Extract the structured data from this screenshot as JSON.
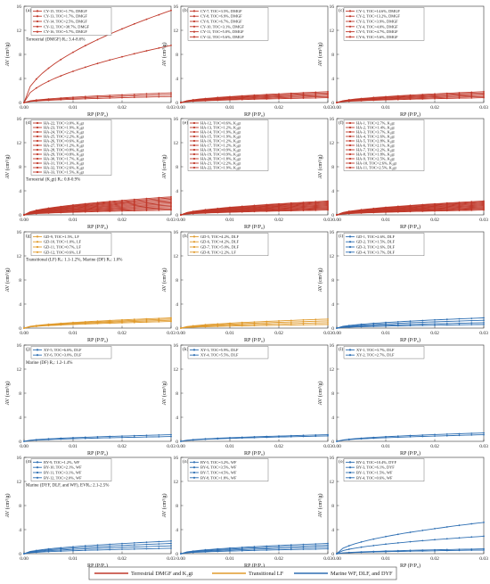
{
  "figure": {
    "bottom_legend": [
      {
        "label": "Terrestrial DMGF and K₂gt",
        "color": "#c0392b"
      },
      {
        "label": "Transitional LF",
        "color": "#e09b2d"
      },
      {
        "label": "Marine WF, DLF, and DYF",
        "color": "#2e6fb3"
      }
    ]
  },
  "chart_data": [
    {
      "type": "line",
      "panel_label": "(a)",
      "xlabel": "RP (P/P₀)",
      "ylabel": "AV (cm³/g)",
      "xlim": [
        0,
        0.03
      ],
      "ylim": [
        0,
        16
      ],
      "x_ticks": [
        "0.00",
        "0.01",
        "0.02",
        "0.03"
      ],
      "y_ticks": [
        "0",
        "4",
        "8",
        "12",
        "16"
      ],
      "annotation": "Terrestrial (DMGF) Rₒ: 3.4-8.6%",
      "color": "#c0392b",
      "series": [
        {
          "name": "CY-15, TOC=1.7%, DMGF",
          "final": 1.0
        },
        {
          "name": "CY-13, TOC=1.7%, DMGF",
          "final": 1.3
        },
        {
          "name": "CY-14, TOC=2.5%, DMGF",
          "final": 1.6
        },
        {
          "name": "CY-12, TOC=38.7%, DMGF",
          "final": 9.5
        },
        {
          "name": "CY-16, TOC=5.7%, DMGF",
          "final": 15.3
        }
      ]
    },
    {
      "type": "line",
      "panel_label": "(b)",
      "xlabel": "RP (P/P₀)",
      "ylabel": "AV (cm³/g)",
      "xlim": [
        0,
        0.03
      ],
      "ylim": [
        0,
        16
      ],
      "x_ticks": [
        "0.00",
        "0.01",
        "0.02",
        "0.03"
      ],
      "y_ticks": [
        "0",
        "4",
        "8",
        "12",
        "16"
      ],
      "annotation": "",
      "color": "#c0392b",
      "series": [
        {
          "name": "CY-7, TOC=3.5%, DMGF",
          "final": 0.8
        },
        {
          "name": "CY-8, TOC=6.9%, DMGF",
          "final": 1.0
        },
        {
          "name": "CY-9, TOC=6.7%, DMGF",
          "final": 1.2
        },
        {
          "name": "CY-10, TOC=3.1%, DMGF",
          "final": 1.4
        },
        {
          "name": "CY-11, TOC=5.0%, DMGF",
          "final": 1.6
        },
        {
          "name": "CY-12, TOC=5.6%, DMGF",
          "final": 1.8
        }
      ]
    },
    {
      "type": "line",
      "panel_label": "(c)",
      "xlabel": "RP (P/P₀)",
      "ylabel": "AV (cm³/g)",
      "xlim": [
        0,
        0.03
      ],
      "ylim": [
        0,
        16
      ],
      "x_ticks": [
        "0.00",
        "0.01",
        "0.02",
        "0.03"
      ],
      "y_ticks": [
        "0",
        "4",
        "8",
        "12",
        "16"
      ],
      "annotation": "",
      "color": "#c0392b",
      "series": [
        {
          "name": "CY-1, TOC=14.6%, DMGF",
          "final": 0.8
        },
        {
          "name": "CY-2, TOC=13.2%, DMGF",
          "final": 1.0
        },
        {
          "name": "CY-3, TOC=3.9%, DMGF",
          "final": 1.2
        },
        {
          "name": "CY-4, TOC=4.0%, DMGF",
          "final": 1.4
        },
        {
          "name": "CY-5, TOC=4.7%, DMGF",
          "final": 1.6
        },
        {
          "name": "CY-6, TOC=5.6%, DMGF",
          "final": 1.8
        }
      ]
    },
    {
      "type": "line",
      "panel_label": "(d)",
      "xlabel": "RP (P/P₀)",
      "ylabel": "AV (cm³/g)",
      "xlim": [
        0,
        0.03
      ],
      "ylim": [
        0,
        16
      ],
      "x_ticks": [
        "0.00",
        "0.01",
        "0.02",
        "0.03"
      ],
      "y_ticks": [
        "0",
        "4",
        "8",
        "12",
        "16"
      ],
      "annotation": "Terrestrial (K₂gt) Rₒ: 0.8-0.9%",
      "color": "#c0392b",
      "series": [
        {
          "name": "HA-22, TOC=3.0%, K₂gt",
          "final": 0.8
        },
        {
          "name": "HA-23, TOC=1.9%, K₂gt",
          "final": 1.0
        },
        {
          "name": "HA-24, TOC=2.2%, K₂gt",
          "final": 1.2
        },
        {
          "name": "HA-25, TOC=2.2%, K₂gt",
          "final": 1.4
        },
        {
          "name": "HA-26, TOC=0.6%, K₂gt",
          "final": 1.6
        },
        {
          "name": "HA-27, TOC=1.2%, K₂gt",
          "final": 1.8
        },
        {
          "name": "HA-28, TOC=0.8%, K₂gt",
          "final": 2.0
        },
        {
          "name": "HA-29, TOC=0.8%, K₂gt",
          "final": 2.2
        },
        {
          "name": "HA-30, TOC=1.7%, K₂gt",
          "final": 2.4
        },
        {
          "name": "HA-31, TOC=1.3%, K₂gt",
          "final": 2.6
        },
        {
          "name": "HA-32, TOC=2.6%, K₂gt",
          "final": 2.8
        },
        {
          "name": "HA-33, TOC=1.5%, K₂gt",
          "final": 3.0
        }
      ]
    },
    {
      "type": "line",
      "panel_label": "(e)",
      "xlabel": "RP (P/P₀)",
      "ylabel": "AV (cm³/g)",
      "xlim": [
        0,
        0.03
      ],
      "ylim": [
        0,
        16
      ],
      "x_ticks": [
        "0.00",
        "0.01",
        "0.02",
        "0.03"
      ],
      "y_ticks": [
        "0",
        "4",
        "8",
        "12",
        "16"
      ],
      "annotation": "",
      "color": "#c0392b",
      "series": [
        {
          "name": "HA-12, TOC=0.6%, K₂gt",
          "final": 0.8
        },
        {
          "name": "HA-13, TOC=1.2%, K₂gt",
          "final": 0.95
        },
        {
          "name": "HA-14, TOC=1.9%, K₂gt",
          "final": 1.1
        },
        {
          "name": "HA-15, TOC=1.9%, K₂gt",
          "final": 1.25
        },
        {
          "name": "HA-16, TOC=1.2%, K₂gt",
          "final": 1.4
        },
        {
          "name": "HA-17, TOC=1.2%, K₂gt",
          "final": 1.55
        },
        {
          "name": "HA-18, TOC=0.9%, K₂gt",
          "final": 1.7
        },
        {
          "name": "HA-19, TOC=0.9%, K₂gt",
          "final": 1.85
        },
        {
          "name": "HA-20, TOC=1.8%, K₂gt",
          "final": 2.0
        },
        {
          "name": "HA-21, TOC=2.2%, K₂gt",
          "final": 2.15
        },
        {
          "name": "HA-22, TOC=1.9%, K₂gt",
          "final": 2.3
        }
      ]
    },
    {
      "type": "line",
      "panel_label": "(f)",
      "xlabel": "RP (P/P₀)",
      "ylabel": "AV (cm³/g)",
      "xlim": [
        0,
        0.03
      ],
      "ylim": [
        0,
        16
      ],
      "x_ticks": [
        "0.00",
        "0.01",
        "0.02",
        "0.03"
      ],
      "y_ticks": [
        "0",
        "4",
        "8",
        "12",
        "16"
      ],
      "annotation": "",
      "color": "#c0392b",
      "series": [
        {
          "name": "HA-1, TOC=2.7%, K₂gt",
          "final": 0.8
        },
        {
          "name": "HA-2, TOC=1.4%, K₂gt",
          "final": 0.95
        },
        {
          "name": "HA-3, TOC=3.7%, K₂gt",
          "final": 1.1
        },
        {
          "name": "HA-4, TOC=2.6%, K₂gt",
          "final": 1.25
        },
        {
          "name": "HA-5, TOC=2.8%, K₂gt",
          "final": 1.4
        },
        {
          "name": "HA-6, TOC=2.1%, K₂gt",
          "final": 1.55
        },
        {
          "name": "HA-7, TOC=2.2%, K₂gt",
          "final": 1.7
        },
        {
          "name": "HA-8, TOC=1.8%, K₂gt",
          "final": 1.85
        },
        {
          "name": "HA-9, TOC=2.5%, K₂gt",
          "final": 2.0
        },
        {
          "name": "HA-10, TOC=2.6%, K₂gt",
          "final": 2.15
        },
        {
          "name": "HA-11, TOC=2.5%, K₂gt",
          "final": 2.3
        }
      ]
    },
    {
      "type": "line",
      "panel_label": "(g)",
      "xlabel": "RP (P/P₀)",
      "ylabel": "AV (cm³/g)",
      "xlim": [
        0,
        0.03
      ],
      "ylim": [
        0,
        16
      ],
      "x_ticks": [
        "0.00",
        "0.01",
        "0.02",
        "0.03"
      ],
      "y_ticks": [
        "0",
        "4",
        "8",
        "12",
        "16"
      ],
      "annotation": "Transitional (LF) Rₒ: 1.1-1.2%, Marine (DF) Rₒ: 1.0%",
      "color": "#e09b2d",
      "series": [
        {
          "name": "GD-9, TOC=1.5%, LF",
          "final": 1.1
        },
        {
          "name": "GD-10, TOC=1.0%, LF",
          "final": 1.3
        },
        {
          "name": "GD-11, TOC=0.7%, LF",
          "final": 1.5
        },
        {
          "name": "GD-12, TOC=0.6%, LF",
          "final": 1.7
        }
      ]
    },
    {
      "type": "line",
      "panel_label": "(h)",
      "xlabel": "RP (P/P₀)",
      "ylabel": "AV (cm³/g)",
      "xlim": [
        0,
        0.03
      ],
      "ylim": [
        0,
        16
      ],
      "x_ticks": [
        "0.00",
        "0.01",
        "0.02",
        "0.03"
      ],
      "y_ticks": [
        "0",
        "4",
        "8",
        "12",
        "16"
      ],
      "annotation": "",
      "color": "#e09b2d",
      "series": [
        {
          "name": "GD-5, TOC=4.2%, DLF",
          "final": 0.6
        },
        {
          "name": "GD-6, TOC=4.2%, DLF",
          "final": 0.9
        },
        {
          "name": "GD-7, TOC=5.0%, DLF",
          "final": 1.2
        },
        {
          "name": "GD-8, TOC=2.2%, LF",
          "final": 1.5
        }
      ]
    },
    {
      "type": "line",
      "panel_label": "(i)",
      "xlabel": "RP (P/P₀)",
      "ylabel": "AV (cm³/g)",
      "xlim": [
        0,
        0.03
      ],
      "ylim": [
        0,
        16
      ],
      "x_ticks": [
        "0.00",
        "0.01",
        "0.02",
        "0.03"
      ],
      "y_ticks": [
        "0",
        "4",
        "8",
        "12",
        "16"
      ],
      "annotation": "",
      "color": "#2e6fb3",
      "series": [
        {
          "name": "GD-1, TOC=2.6%, DLF",
          "final": 0.6
        },
        {
          "name": "GD-2, TOC=1.5%, DLF",
          "final": 0.9
        },
        {
          "name": "GD-3, TOC=2.6%, DLF",
          "final": 1.3
        },
        {
          "name": "GD-4, TOC=3.7%, DLF",
          "final": 1.7
        }
      ]
    },
    {
      "type": "line",
      "panel_label": "(j)",
      "xlabel": "RP (P/P₀)",
      "ylabel": "AV (cm³/g)",
      "xlim": [
        0,
        0.03
      ],
      "ylim": [
        0,
        16
      ],
      "x_ticks": [
        "0.00",
        "0.01",
        "0.02",
        "0.03"
      ],
      "y_ticks": [
        "0",
        "4",
        "8",
        "12",
        "16"
      ],
      "annotation": "Marine (DF) Rₒ: 1.2-1.4%",
      "color": "#2e6fb3",
      "series": [
        {
          "name": "XY-5, TOC=6.6%, DLF",
          "final": 0.8
        },
        {
          "name": "XY-6, TOC=3.0%, DLF",
          "final": 1.1
        }
      ]
    },
    {
      "type": "line",
      "panel_label": "(k)",
      "xlabel": "RP (P/P₀)",
      "ylabel": "AV (cm³/g)",
      "xlim": [
        0,
        0.03
      ],
      "ylim": [
        0,
        16
      ],
      "x_ticks": [
        "0.00",
        "0.01",
        "0.02",
        "0.03"
      ],
      "y_ticks": [
        "0",
        "4",
        "8",
        "12",
        "16"
      ],
      "annotation": "",
      "color": "#2e6fb3",
      "series": [
        {
          "name": "XY-3, TOC=5.9%, DLF",
          "final": 0.9
        },
        {
          "name": "XY-4, TOC=5.5%, DLF",
          "final": 1.1
        }
      ]
    },
    {
      "type": "line",
      "panel_label": "(l)",
      "xlabel": "RP (P/P₀)",
      "ylabel": "AV (cm³/g)",
      "xlim": [
        0,
        0.03
      ],
      "ylim": [
        0,
        16
      ],
      "x_ticks": [
        "0.00",
        "0.01",
        "0.02",
        "0.03"
      ],
      "y_ticks": [
        "0",
        "4",
        "8",
        "12",
        "16"
      ],
      "annotation": "",
      "color": "#2e6fb3",
      "series": [
        {
          "name": "XY-1, TOC=3.7%, DLF",
          "final": 1.1
        },
        {
          "name": "XY-2, TOC=2.7%, DLF",
          "final": 1.4
        }
      ]
    },
    {
      "type": "line",
      "panel_label": "(m)",
      "xlabel": "RP (P/P₀)",
      "ylabel": "AV (cm³/g)",
      "xlim": [
        0,
        0.03
      ],
      "ylim": [
        0,
        16
      ],
      "x_ticks": [
        "0.00",
        "0.01",
        "0.02",
        "0.03"
      ],
      "y_ticks": [
        "0",
        "4",
        "8",
        "12",
        "16"
      ],
      "annotation": "Marine (DYF, DLF, and WF), EVRₒ: 2.1-2.5%",
      "color": "#2e6fb3",
      "series": [
        {
          "name": "BY-9, TOC=1.2%, WF",
          "final": 0.9
        },
        {
          "name": "BY-10, TOC=2.1%, WF",
          "final": 1.3
        },
        {
          "name": "BY-11, TOC=3.1%, WF",
          "final": 1.7
        },
        {
          "name": "BY-12, TOC=2.0%, WF",
          "final": 2.1
        }
      ]
    },
    {
      "type": "line",
      "panel_label": "(n)",
      "xlabel": "RP (P/P₀)",
      "ylabel": "AV (cm³/g)",
      "xlim": [
        0,
        0.03
      ],
      "ylim": [
        0,
        16
      ],
      "x_ticks": [
        "0.00",
        "0.01",
        "0.02",
        "0.03"
      ],
      "y_ticks": [
        "0",
        "4",
        "8",
        "12",
        "16"
      ],
      "annotation": "",
      "color": "#2e6fb3",
      "series": [
        {
          "name": "BY-5, TOC=3.2%, WF",
          "final": 0.8
        },
        {
          "name": "BY-6, TOC=3.5%, WF",
          "final": 1.1
        },
        {
          "name": "BY-7, TOC=4.5%, WF",
          "final": 1.4
        },
        {
          "name": "BY-8, TOC=1.8%, WF",
          "final": 1.7
        }
      ]
    },
    {
      "type": "line",
      "panel_label": "(o)",
      "xlabel": "RP (P/P₀)",
      "ylabel": "AV (cm³/g)",
      "xlim": [
        0,
        0.03
      ],
      "ylim": [
        0,
        16
      ],
      "x_ticks": [
        "0.00",
        "0.01",
        "0.02",
        "0.03"
      ],
      "y_ticks": [
        "0",
        "4",
        "8",
        "12",
        "16"
      ],
      "annotation": "",
      "color": "#2e6fb3",
      "series": [
        {
          "name": "BY-2, TOC=10.4%, DYF",
          "final": 0.8
        },
        {
          "name": "BY-3, TOC=6.1%, DYF",
          "final": 2.9
        },
        {
          "name": "BY-1, TOC=1.5%, WF",
          "final": 5.2
        },
        {
          "name": "BY-4, TOC=0.6%, WF",
          "final": 0.6
        }
      ]
    }
  ]
}
